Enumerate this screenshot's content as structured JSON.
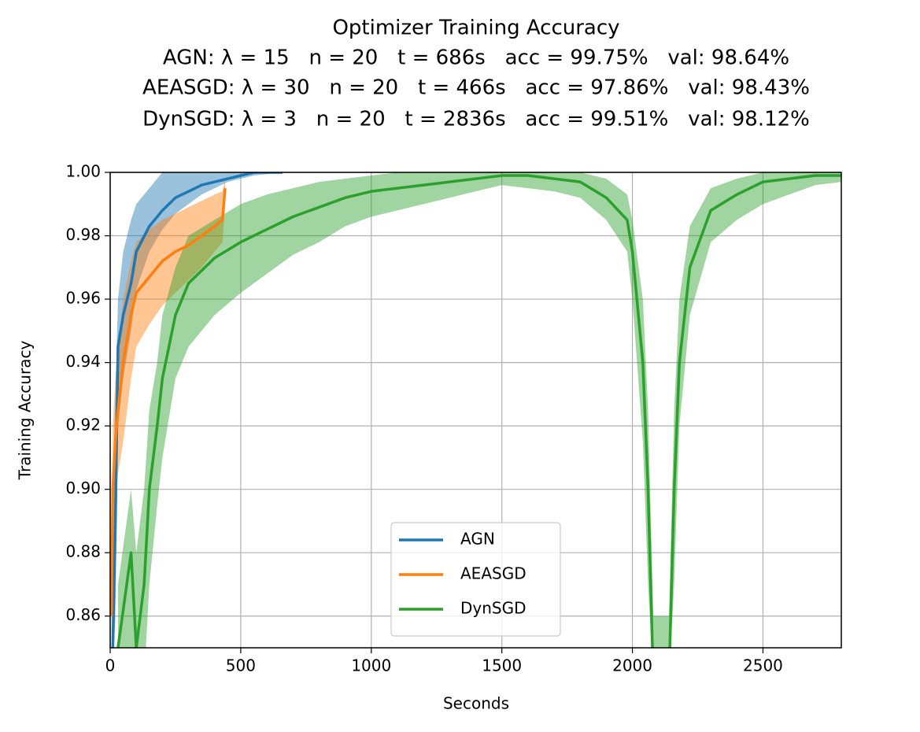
{
  "chart_data": {
    "type": "line",
    "title": "Optimizer Training Accuracy",
    "subtitles": [
      "AGN: λ = 15   n = 20   t = 686s   acc = 99.75%   val: 98.64%",
      "AEASGD: λ = 30   n = 20   t = 466s   acc = 97.86%   val: 98.43%",
      "DynSGD: λ = 3   n = 20   t = 2836s   acc = 99.51%   val: 98.12%"
    ],
    "x_label": "Seconds",
    "y_label": "Training Accuracy",
    "xlim": [
      0,
      2800
    ],
    "ylim": [
      0.85,
      1.0
    ],
    "xticks": [
      0,
      500,
      1000,
      1500,
      2000,
      2500
    ],
    "yticks": [
      0.86,
      0.88,
      {
        "value": 0.9,
        "label": "0.90"
      },
      0.92,
      0.94,
      0.96,
      0.98,
      {
        "value": 1.0,
        "label": "1.00"
      }
    ],
    "grid": true,
    "legend": "lower center",
    "series": [
      {
        "name": "AGN",
        "color": "#1f77b4",
        "x": [
          10,
          20,
          30,
          50,
          80,
          100,
          150,
          200,
          250,
          300,
          350,
          400,
          450,
          500,
          550,
          660
        ],
        "values": [
          0.85,
          0.89,
          0.945,
          0.955,
          0.965,
          0.975,
          0.983,
          0.988,
          0.992,
          0.994,
          0.996,
          0.997,
          0.998,
          0.999,
          1.0,
          1.0
        ],
        "lower": [
          0.84,
          0.86,
          0.92,
          0.935,
          0.95,
          0.963,
          0.975,
          0.982,
          0.987,
          0.99,
          0.993,
          0.995,
          0.997,
          0.998,
          0.999,
          1.0
        ],
        "upper": [
          0.9,
          0.93,
          0.96,
          0.975,
          0.985,
          0.99,
          0.995,
          1.0,
          1.0,
          1.0,
          1.0,
          1.0,
          1.0,
          1.0,
          1.0,
          1.0
        ]
      },
      {
        "name": "AEASGD",
        "color": "#ff7f0e",
        "x": [
          5,
          10,
          20,
          30,
          50,
          80,
          100,
          150,
          200,
          250,
          300,
          350,
          400,
          430,
          440
        ],
        "values": [
          0.86,
          0.9,
          0.915,
          0.925,
          0.94,
          0.955,
          0.962,
          0.967,
          0.972,
          0.975,
          0.977,
          0.98,
          0.983,
          0.985,
          0.995
        ],
        "lower": [
          0.85,
          0.88,
          0.895,
          0.905,
          0.915,
          0.935,
          0.945,
          0.952,
          0.958,
          0.962,
          0.966,
          0.97,
          0.975,
          0.978,
          0.99
        ],
        "upper": [
          0.88,
          0.92,
          0.935,
          0.945,
          0.96,
          0.972,
          0.978,
          0.982,
          0.985,
          0.987,
          0.989,
          0.991,
          0.993,
          0.994,
          0.998
        ]
      },
      {
        "name": "DynSGD",
        "color": "#2ca02c",
        "x": [
          30,
          80,
          100,
          130,
          150,
          180,
          200,
          250,
          300,
          400,
          500,
          600,
          700,
          800,
          900,
          1000,
          1100,
          1200,
          1300,
          1400,
          1500,
          1600,
          1700,
          1800,
          1900,
          1980,
          2000,
          2040,
          2060,
          2080,
          2140,
          2160,
          2180,
          2220,
          2300,
          2400,
          2500,
          2600,
          2700,
          2800
        ],
        "values": [
          0.85,
          0.88,
          0.85,
          0.87,
          0.9,
          0.92,
          0.935,
          0.955,
          0.965,
          0.973,
          0.978,
          0.982,
          0.986,
          0.989,
          0.992,
          0.994,
          0.995,
          0.996,
          0.997,
          0.998,
          0.999,
          0.999,
          0.998,
          0.997,
          0.992,
          0.985,
          0.975,
          0.94,
          0.9,
          0.84,
          0.84,
          0.9,
          0.94,
          0.97,
          0.988,
          0.993,
          0.997,
          0.998,
          0.999,
          0.999
        ],
        "lower": [
          0.84,
          0.85,
          0.84,
          0.84,
          0.87,
          0.895,
          0.91,
          0.935,
          0.945,
          0.955,
          0.962,
          0.968,
          0.974,
          0.978,
          0.983,
          0.986,
          0.988,
          0.99,
          0.992,
          0.994,
          0.996,
          0.995,
          0.994,
          0.992,
          0.985,
          0.975,
          0.96,
          0.915,
          0.87,
          0.84,
          0.84,
          0.87,
          0.92,
          0.955,
          0.978,
          0.985,
          0.99,
          0.993,
          0.996,
          0.997
        ],
        "upper": [
          0.87,
          0.9,
          0.88,
          0.9,
          0.925,
          0.94,
          0.955,
          0.97,
          0.98,
          0.985,
          0.99,
          0.993,
          0.995,
          0.997,
          0.998,
          0.999,
          1.0,
          1.0,
          1.0,
          1.0,
          1.0,
          1.0,
          1.0,
          1.0,
          0.998,
          0.993,
          0.985,
          0.96,
          0.925,
          0.86,
          0.86,
          0.925,
          0.96,
          0.983,
          0.995,
          0.998,
          1.0,
          1.0,
          1.0,
          1.0
        ]
      }
    ]
  }
}
